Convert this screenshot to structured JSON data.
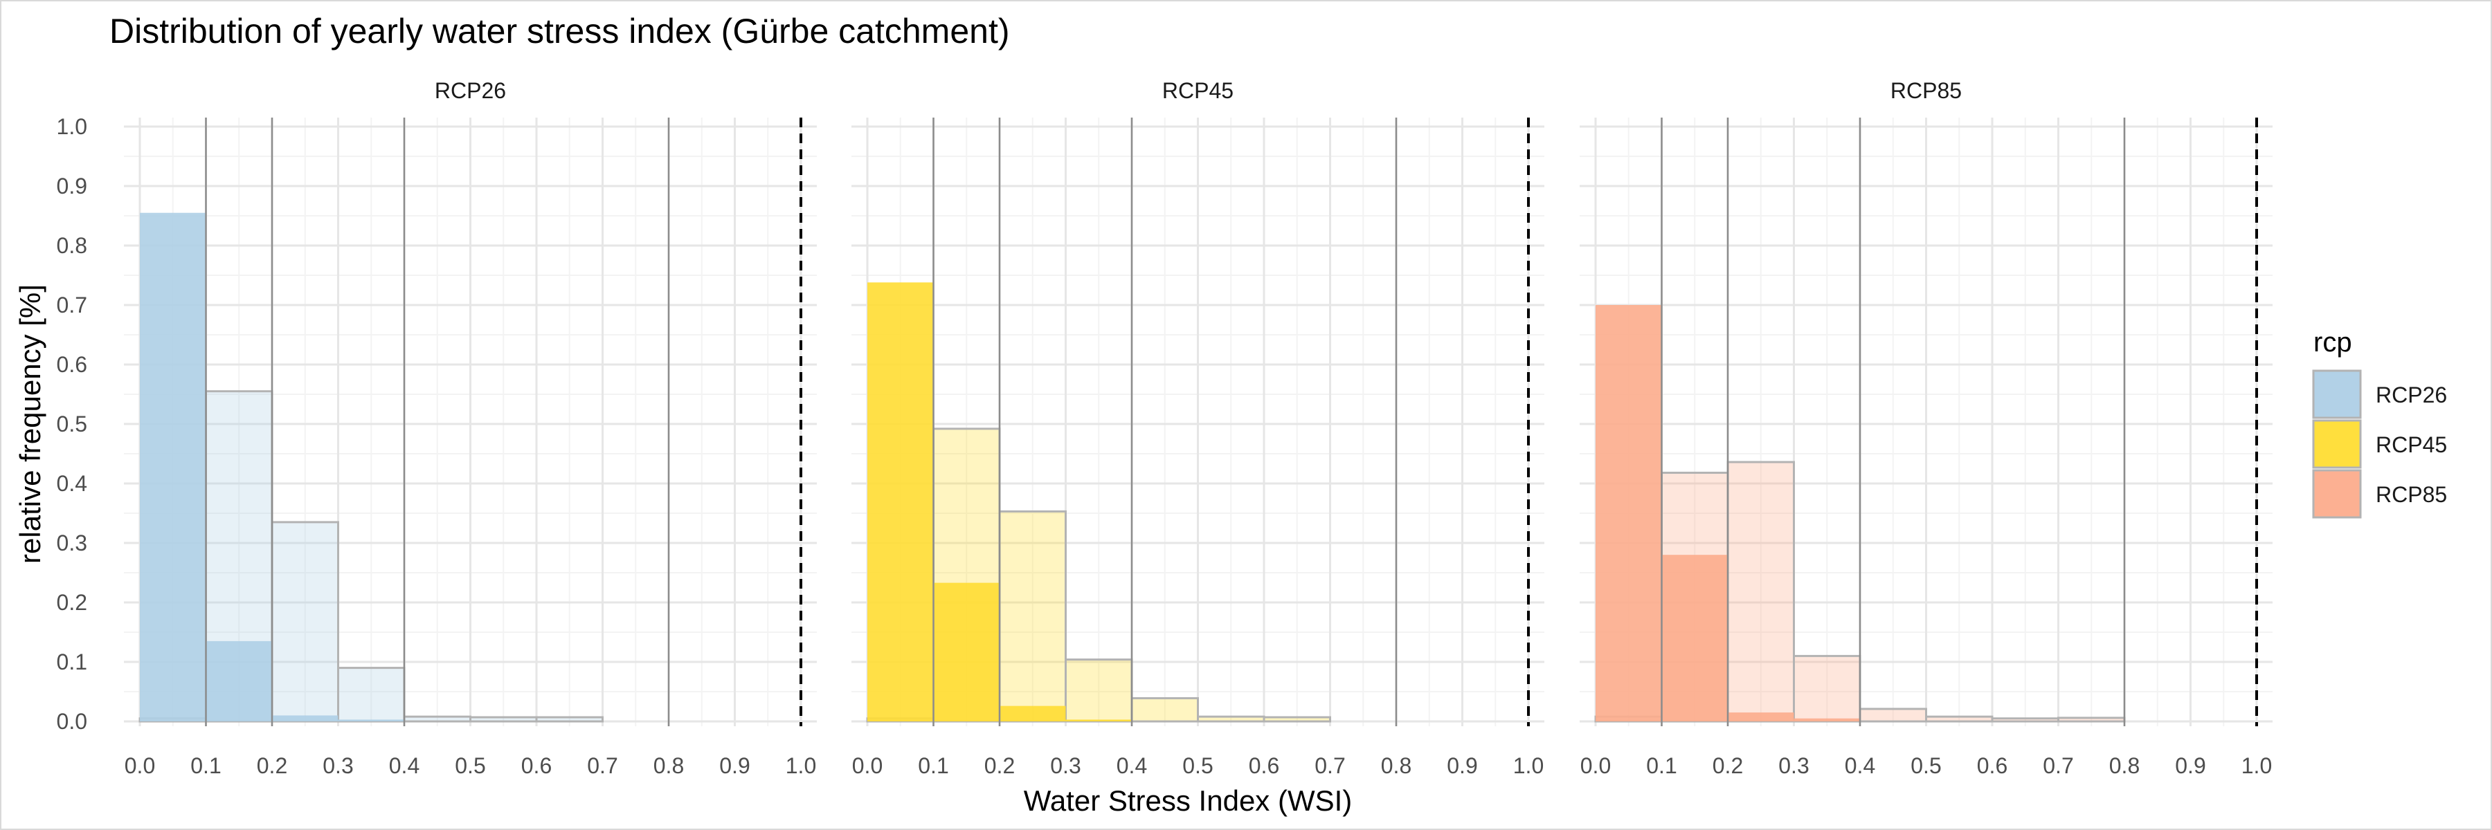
{
  "chart_data": {
    "type": "bar",
    "title": "Distribution of yearly water stress index (Gürbe catchment)",
    "xlabel": "Water Stress Index (WSI)",
    "ylabel": "relative frequency [%]",
    "xlim": [
      0,
      1
    ],
    "ylim": [
      0,
      1
    ],
    "x_ticks": [
      "0.0",
      "0.1",
      "0.2",
      "0.3",
      "0.4",
      "0.5",
      "0.6",
      "0.7",
      "0.8",
      "0.9",
      "1.0"
    ],
    "y_ticks": [
      "0.0",
      "0.1",
      "0.2",
      "0.3",
      "0.4",
      "0.5",
      "0.6",
      "0.7",
      "0.8",
      "0.9",
      "1.0"
    ],
    "bin_edges": [
      0,
      0.1,
      0.2,
      0.3,
      0.4,
      0.5,
      0.6,
      0.7,
      0.8,
      0.9,
      1.0
    ],
    "threshold_line": 1.0,
    "grid": true,
    "legend": {
      "title": "rcp",
      "position": "right",
      "entries": [
        {
          "label": "RCP26",
          "color": "#aecfe6"
        },
        {
          "label": "RCP45",
          "color": "#ffdd33"
        },
        {
          "label": "RCP85",
          "color": "#fcac8c"
        }
      ]
    },
    "panels": [
      {
        "name": "RCP26",
        "color": "#aecfe6",
        "vlines": [
          0.1,
          0.2,
          0.4,
          0.8
        ],
        "series": [
          {
            "name": "solid",
            "values": [
              0.855,
              0.135,
              0.01,
              0.003,
              0,
              0,
              0,
              0,
              0,
              0
            ]
          },
          {
            "name": "light",
            "values": [
              0.005,
              0.555,
              0.335,
              0.09,
              0.008,
              0.007,
              0.007,
              0,
              0,
              0
            ]
          }
        ]
      },
      {
        "name": "RCP45",
        "color": "#ffdd33",
        "vlines": [
          0.1,
          0.2,
          0.4,
          0.8
        ],
        "series": [
          {
            "name": "solid",
            "values": [
              0.738,
              0.233,
              0.026,
              0.003,
              0,
              0,
              0,
              0,
              0,
              0
            ]
          },
          {
            "name": "light",
            "values": [
              0.005,
              0.492,
              0.353,
              0.104,
              0.039,
              0.008,
              0.007,
              0,
              0,
              0
            ]
          }
        ]
      },
      {
        "name": "RCP85",
        "color": "#fcac8c",
        "vlines": [
          0.1,
          0.2,
          0.4,
          0.8
        ],
        "series": [
          {
            "name": "solid",
            "values": [
              0.7,
              0.28,
              0.015,
              0.005,
              0,
              0,
              0,
              0,
              0,
              0
            ]
          },
          {
            "name": "light",
            "values": [
              0.008,
              0.418,
              0.436,
              0.11,
              0.021,
              0.008,
              0.005,
              0.006,
              0,
              0
            ]
          }
        ]
      }
    ]
  }
}
